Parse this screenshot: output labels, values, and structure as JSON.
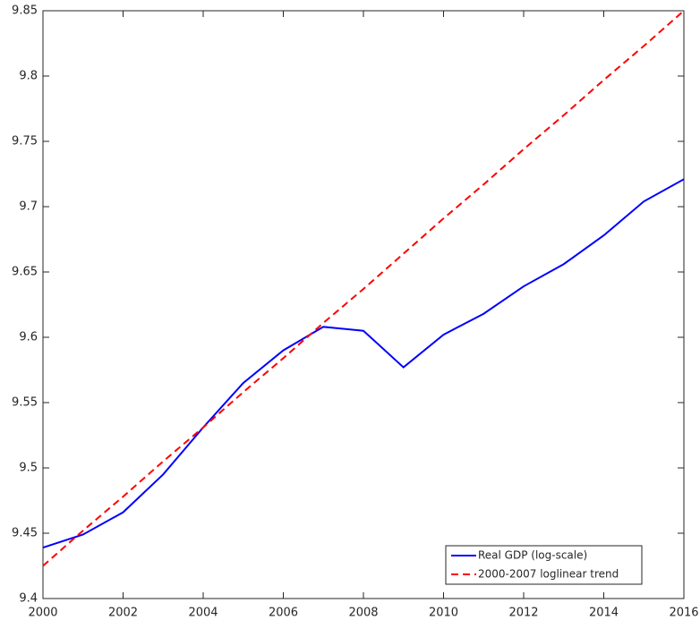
{
  "chart_data": {
    "type": "line",
    "x": [
      2000,
      2001,
      2002,
      2003,
      2004,
      2005,
      2006,
      2007,
      2008,
      2009,
      2010,
      2011,
      2012,
      2013,
      2014,
      2015,
      2016
    ],
    "series": [
      {
        "name": "Real GDP (log-scale)",
        "color": "#0000ff",
        "dash": "solid",
        "values": [
          9.439,
          9.449,
          9.466,
          9.495,
          9.531,
          9.565,
          9.59,
          9.608,
          9.605,
          9.577,
          9.602,
          9.618,
          9.639,
          9.656,
          9.678,
          9.704,
          9.721
        ]
      },
      {
        "name": "2000-2007 loglinear trend",
        "color": "#ff0000",
        "dash": "dashed",
        "values": [
          9.425,
          9.452,
          9.478,
          9.505,
          9.531,
          9.558,
          9.584,
          9.611,
          9.637,
          9.664,
          9.691,
          9.717,
          9.744,
          9.77,
          9.797,
          9.823,
          9.85
        ]
      }
    ],
    "xlim": [
      2000,
      2016
    ],
    "xticks": [
      2000,
      2002,
      2004,
      2006,
      2008,
      2010,
      2012,
      2014,
      2016
    ],
    "ylim": [
      9.4,
      9.85
    ],
    "yticks": [
      9.4,
      9.45,
      9.5,
      9.55,
      9.6,
      9.65,
      9.7,
      9.75,
      9.8,
      9.85
    ],
    "grid": false,
    "legend": "lower-right"
  }
}
